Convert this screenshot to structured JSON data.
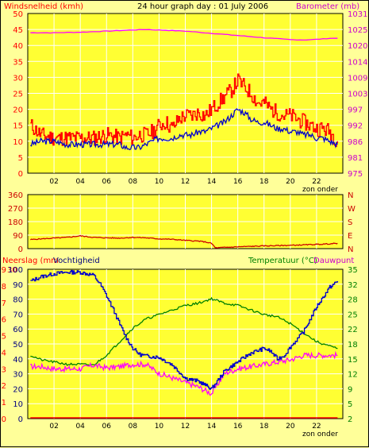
{
  "colors": {
    "background": "#ffff99",
    "plot_bg": "#ffff33",
    "grid": "#ffffff",
    "windgust": "#ff0000",
    "windavg": "#0000cc",
    "barometer": "#ff00ff",
    "direction": "#cc0000",
    "humidity": "#0000cc",
    "temperature": "#008000",
    "dewpoint": "#ff00ff",
    "rain": "#ff0000",
    "left_text": "#ff0000",
    "right_text": "#cc00cc",
    "dir_text": "#cc0000",
    "temp_text": "#008000",
    "hum_text": "#000080"
  },
  "chart_data": [
    {
      "type": "line",
      "name": "wind-barometer",
      "title": "24 hour graph day : 01 July 2006",
      "ylabel_left": "Windsnelheid (kmh)",
      "ylabel_right": "Barometer (mb)",
      "xlabel": "zon onder",
      "x_ticks": [
        "02",
        "04",
        "06",
        "08",
        "10",
        "12",
        "14",
        "16",
        "18",
        "20",
        "22"
      ],
      "ylim_left": [
        0,
        50
      ],
      "y_ticks_left": [
        "0",
        "5",
        "10",
        "15",
        "20",
        "25",
        "30",
        "35",
        "40",
        "45",
        "50"
      ],
      "ylim_right": [
        975,
        1033
      ],
      "y_ticks_right": [
        "975",
        "981",
        "986",
        "992",
        "997",
        "1003",
        "1009",
        "1014",
        "1020",
        "1025",
        "1031"
      ],
      "grid": true,
      "series": [
        {
          "name": "gust",
          "axis": "left",
          "x": [
            0.2,
            1,
            2,
            3,
            4,
            5,
            6,
            7,
            7.5,
            8,
            8.5,
            9,
            9.5,
            10,
            10.5,
            11,
            11.5,
            12,
            12.5,
            13,
            13.5,
            14,
            14.5,
            15,
            15.5,
            16,
            16.5,
            17,
            17.5,
            18,
            18.5,
            19,
            19.5,
            20,
            20.5,
            21,
            21.5,
            22,
            22.5,
            23,
            23.6
          ],
          "y": [
            15,
            12,
            11,
            11,
            11,
            11,
            12,
            11,
            12,
            11,
            12,
            12,
            13,
            15,
            16,
            14,
            17,
            18,
            18,
            19,
            18,
            20,
            22,
            24,
            26,
            29,
            27,
            25,
            22,
            22,
            20,
            19,
            18,
            18,
            17,
            16,
            15,
            14,
            14,
            13,
            10
          ]
        },
        {
          "name": "average",
          "axis": "left",
          "x": [
            0.2,
            1,
            2,
            3,
            4,
            5,
            6,
            7,
            7.5,
            8,
            8.5,
            9,
            9.5,
            10,
            10.5,
            11,
            11.5,
            12,
            12.5,
            13,
            13.5,
            14,
            14.5,
            15,
            15.5,
            16,
            16.5,
            17,
            17.5,
            18,
            18.5,
            19,
            19.5,
            20,
            20.5,
            21,
            21.5,
            22,
            22.5,
            23,
            23.6
          ],
          "y": [
            9,
            10,
            10,
            9,
            9,
            9,
            9,
            9,
            8,
            8,
            8,
            9,
            10,
            11,
            11,
            11,
            12,
            12,
            12,
            13,
            13,
            14,
            15,
            16,
            18,
            20,
            19,
            17,
            16,
            16,
            15,
            14,
            14,
            13,
            13,
            12,
            12,
            11,
            11,
            10,
            9
          ]
        },
        {
          "name": "barometer",
          "axis": "right",
          "x": [
            0.2,
            2,
            4,
            6,
            8,
            9,
            10,
            12,
            14,
            16,
            18,
            20,
            21,
            22,
            23,
            23.6
          ],
          "y": [
            1026,
            1026,
            1026.2,
            1026.6,
            1027,
            1027.2,
            1027,
            1026.6,
            1025.8,
            1025,
            1024.2,
            1023.5,
            1023.4,
            1023.6,
            1024,
            1024
          ]
        }
      ]
    },
    {
      "type": "line",
      "name": "wind-direction",
      "y_ticks_left": [
        "0",
        "90",
        "180",
        "270",
        "360"
      ],
      "ylim_left": [
        0,
        360
      ],
      "y_ticks_right": [
        "N",
        "E",
        "S",
        "W",
        "N"
      ],
      "grid": true,
      "series": [
        {
          "name": "direction",
          "x": [
            0.2,
            1,
            2,
            3,
            4,
            5,
            6,
            7,
            8,
            9,
            10,
            11,
            12,
            13,
            13.5,
            14,
            14.3,
            15,
            16,
            17,
            18,
            19,
            20,
            21,
            22,
            23,
            23.6
          ],
          "y": [
            60,
            65,
            70,
            75,
            85,
            75,
            72,
            70,
            75,
            72,
            65,
            62,
            55,
            50,
            45,
            35,
            5,
            8,
            12,
            15,
            18,
            20,
            22,
            25,
            28,
            32,
            35
          ]
        }
      ]
    },
    {
      "type": "line",
      "name": "rain-humidity-temperature",
      "ylabel_left": "Neerslag (mm",
      "ylabel_left2": "Vochtigheid",
      "ylabel_right": "Temperatuur (°C)",
      "ylabel_right2": "Dauwpunt",
      "xlabel": "zon onder",
      "x_ticks": [
        "02",
        "04",
        "06",
        "08",
        "10",
        "12",
        "14",
        "16",
        "18",
        "20",
        "22"
      ],
      "y_ticks_rain": [
        "0",
        "1",
        "2",
        "3",
        "4",
        "5",
        "6",
        "7",
        "8",
        "9",
        "10"
      ],
      "y_ticks_humidity": [
        "0",
        "10",
        "20",
        "30",
        "40",
        "50",
        "60",
        "70",
        "80",
        "90",
        "100"
      ],
      "y_ticks_humidity_top": "30",
      "ylim_humidity": [
        0,
        100
      ],
      "y_ticks_temp": [
        "2",
        "5",
        "9",
        "12",
        "15",
        "18",
        "22",
        "25",
        "28",
        "32",
        "35"
      ],
      "ylim_temp": [
        2,
        35
      ],
      "grid": true,
      "series": [
        {
          "name": "humidity",
          "axis": "humidity",
          "x": [
            0.2,
            1,
            2,
            3,
            4,
            5,
            5.5,
            6,
            6.5,
            7,
            7.5,
            8,
            8.5,
            9,
            10,
            11,
            12,
            13,
            14,
            14.5,
            15,
            16,
            17,
            18,
            18.5,
            19,
            19.5,
            20,
            21,
            22,
            23,
            23.6
          ],
          "y": [
            92,
            95,
            97,
            98,
            98,
            96,
            90,
            82,
            73,
            63,
            54,
            47,
            43,
            42,
            41,
            36,
            27,
            25,
            20,
            26,
            32,
            38,
            44,
            47,
            45,
            40,
            42,
            48,
            58,
            75,
            88,
            92
          ]
        },
        {
          "name": "temperature",
          "axis": "temp",
          "x": [
            0.2,
            1,
            2,
            3,
            4,
            5,
            6,
            7,
            8,
            9,
            10,
            11,
            12,
            13,
            14,
            15,
            16,
            17,
            18,
            19,
            20,
            21,
            22,
            23,
            23.6
          ],
          "y": [
            16,
            15,
            14.5,
            14,
            14,
            13.8,
            16,
            19,
            22,
            24,
            25,
            26,
            27,
            27.5,
            28.5,
            27.5,
            27,
            26,
            25,
            24.5,
            23,
            21,
            19,
            18,
            17.5
          ]
        },
        {
          "name": "dewpoint",
          "axis": "temp",
          "x": [
            0.2,
            1,
            2,
            3,
            4,
            5,
            6,
            7,
            8,
            9,
            10,
            11,
            12,
            13,
            14,
            15,
            16,
            17,
            18,
            19,
            20,
            21,
            22,
            23,
            23.6
          ],
          "y": [
            13.5,
            13.5,
            13,
            13,
            13,
            13.8,
            13.2,
            13.5,
            14,
            14,
            12,
            11,
            10,
            9,
            7.5,
            12,
            13,
            13.5,
            14,
            14.5,
            15,
            16,
            16,
            16,
            16
          ]
        },
        {
          "name": "rain",
          "axis": "rain",
          "x": [
            0.2,
            23.6
          ],
          "y": [
            0,
            0
          ]
        }
      ]
    }
  ]
}
